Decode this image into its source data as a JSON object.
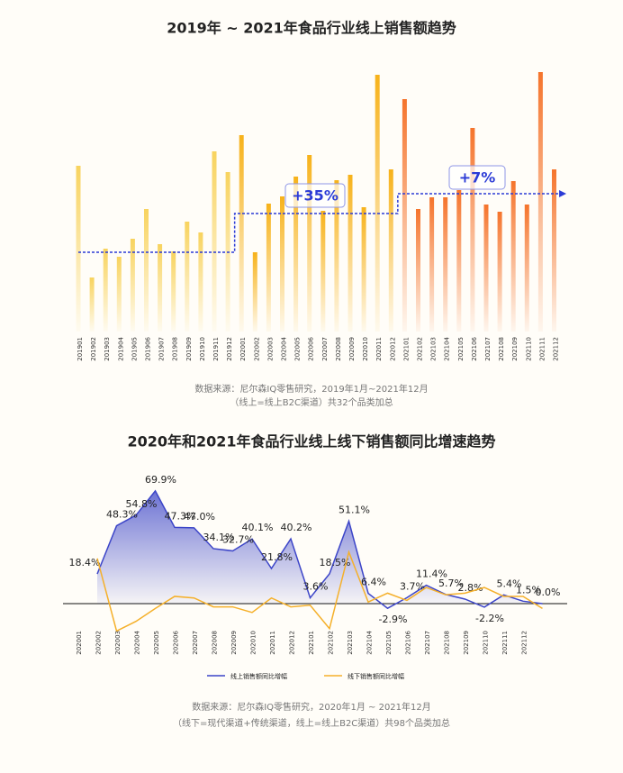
{
  "chart_data": [
    {
      "type": "bar",
      "title": "2019年 ~ 2021年食品行业线上销售额趋势",
      "categories": [
        "201901",
        "201902",
        "201903",
        "201904",
        "201905",
        "201906",
        "201907",
        "201908",
        "201909",
        "201910",
        "201911",
        "201912",
        "202001",
        "202002",
        "202003",
        "202004",
        "202005",
        "202006",
        "202007",
        "202008",
        "202009",
        "202010",
        "202011",
        "202012",
        "202101",
        "202102",
        "202103",
        "202104",
        "202105",
        "202106",
        "202107",
        "202108",
        "202109",
        "202110",
        "202111",
        "202112"
      ],
      "values": [
        184,
        60,
        92,
        83,
        103,
        136,
        97,
        89,
        122,
        110,
        200,
        177,
        218,
        88,
        142,
        150,
        172,
        196,
        134,
        168,
        174,
        138,
        285,
        180,
        258,
        136,
        149,
        149,
        157,
        226,
        141,
        133,
        167,
        141,
        288,
        180
      ],
      "colors": [
        "#f8d35e",
        "#f7b21a",
        "#f5742c"
      ],
      "averages": [
        88,
        131,
        153
      ],
      "average_color": "#2b3bd6",
      "annotations": [
        "+35%",
        "+7%"
      ],
      "ylim": [
        0,
        300
      ],
      "source": [
        "数据来源：尼尔森IQ零售研究，2019年1月~2021年12月",
        "（线上=线上B2C渠道）共32个品类加总"
      ]
    },
    {
      "type": "line",
      "title": "2020年和2021年食品行业线上线下销售额同比增速趋势",
      "categories": [
        "202001",
        "202002",
        "202003",
        "202004",
        "202005",
        "202006",
        "202007",
        "202008",
        "202009",
        "202010",
        "202011",
        "202012",
        "202101",
        "202102",
        "202103",
        "202104",
        "202105",
        "202106",
        "202107",
        "202108",
        "202109",
        "202110",
        "202111",
        "202112"
      ],
      "series": [
        {
          "name": "线上销售额同比增幅",
          "color": "#3c45c8",
          "values": [
            18.4,
            48.3,
            54.8,
            69.9,
            47.3,
            47.0,
            34.1,
            32.7,
            40.1,
            21.8,
            40.2,
            3.6,
            18.5,
            51.1,
            6.4,
            -2.9,
            3.7,
            11.4,
            5.7,
            2.8,
            -2.2,
            5.4,
            1.5,
            0.0
          ],
          "value_labels": [
            "18.4%",
            "48.3%",
            "54.8%",
            "69.9%",
            "47.3%",
            "47.0%",
            "34.1%",
            "32.7%",
            "40.1%",
            "21.8%",
            "40.2%",
            "3.6%",
            "18.5%",
            "51.1%",
            "6.4%",
            "-2.9%",
            "3.7%",
            "11.4%",
            "5.7%",
            "2.8%",
            "-2.2%",
            "5.4%",
            "1.5%",
            "0.0%"
          ]
        },
        {
          "name": "线下销售额同比增幅",
          "color": "#f5b02a",
          "values": [
            28,
            -17,
            -11,
            -3,
            4.5,
            3.5,
            -2,
            -2,
            -5.5,
            3.5,
            -2,
            -1,
            -15.5,
            32,
            1,
            6.5,
            2,
            10,
            5.5,
            6.5,
            10,
            4.5,
            4.5,
            -3
          ]
        }
      ],
      "ylim": [
        -20,
        75
      ],
      "source": [
        "数据来源：尼尔森IQ零售研究，2020年1月 ~ 2021年12月",
        "（线下=现代渠道+传统渠道，线上=线上B2C渠道）共98个品类加总"
      ]
    }
  ]
}
